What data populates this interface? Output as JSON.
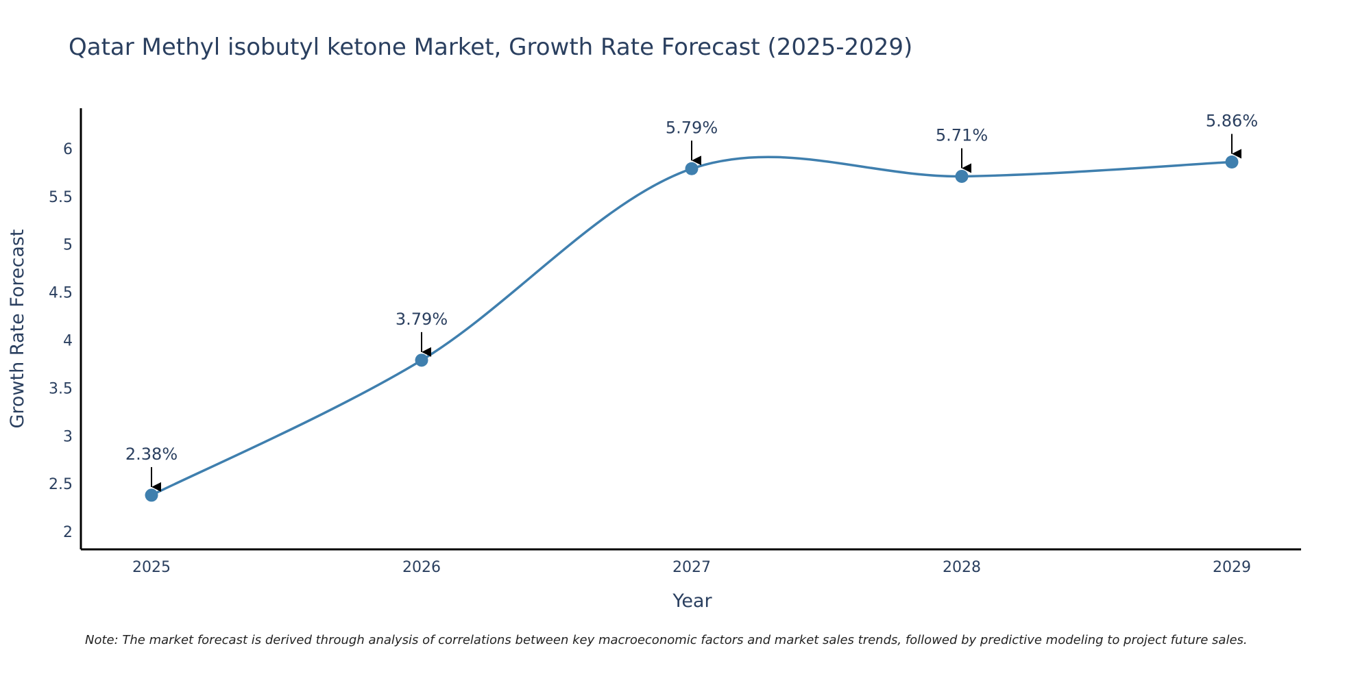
{
  "chart_data": {
    "type": "line",
    "title": "Qatar Methyl isobutyl ketone Market, Growth Rate Forecast (2025-2029)",
    "xlabel": "Year",
    "ylabel": "Growth Rate Forecast",
    "categories": [
      "2025",
      "2026",
      "2027",
      "2028",
      "2029"
    ],
    "series": [
      {
        "name": "Growth Rate Forecast",
        "values": [
          2.38,
          3.79,
          5.79,
          5.71,
          5.86
        ],
        "labels": [
          "2.38%",
          "3.79%",
          "5.79%",
          "5.71%",
          "5.86%"
        ]
      }
    ],
    "ylim": [
      1.85,
      6.35
    ],
    "yticks": [
      2,
      2.5,
      3,
      3.5,
      4,
      4.5,
      5,
      5.5,
      6
    ],
    "ytick_labels": [
      "2",
      "2.5",
      "3",
      "3.5",
      "4",
      "4.5",
      "5",
      "5.5",
      "6"
    ],
    "line_shape": "spline",
    "grid": false,
    "note": "Note: The market forecast is derived through analysis of correlations between key macroeconomic factors and market sales trends, followed by predictive modeling to project future sales.",
    "colors": {
      "line": "#3f7fae",
      "marker": "#3f7fae",
      "text": "#2a3f5f",
      "axis": "#000000",
      "arrow": "#000000"
    }
  }
}
